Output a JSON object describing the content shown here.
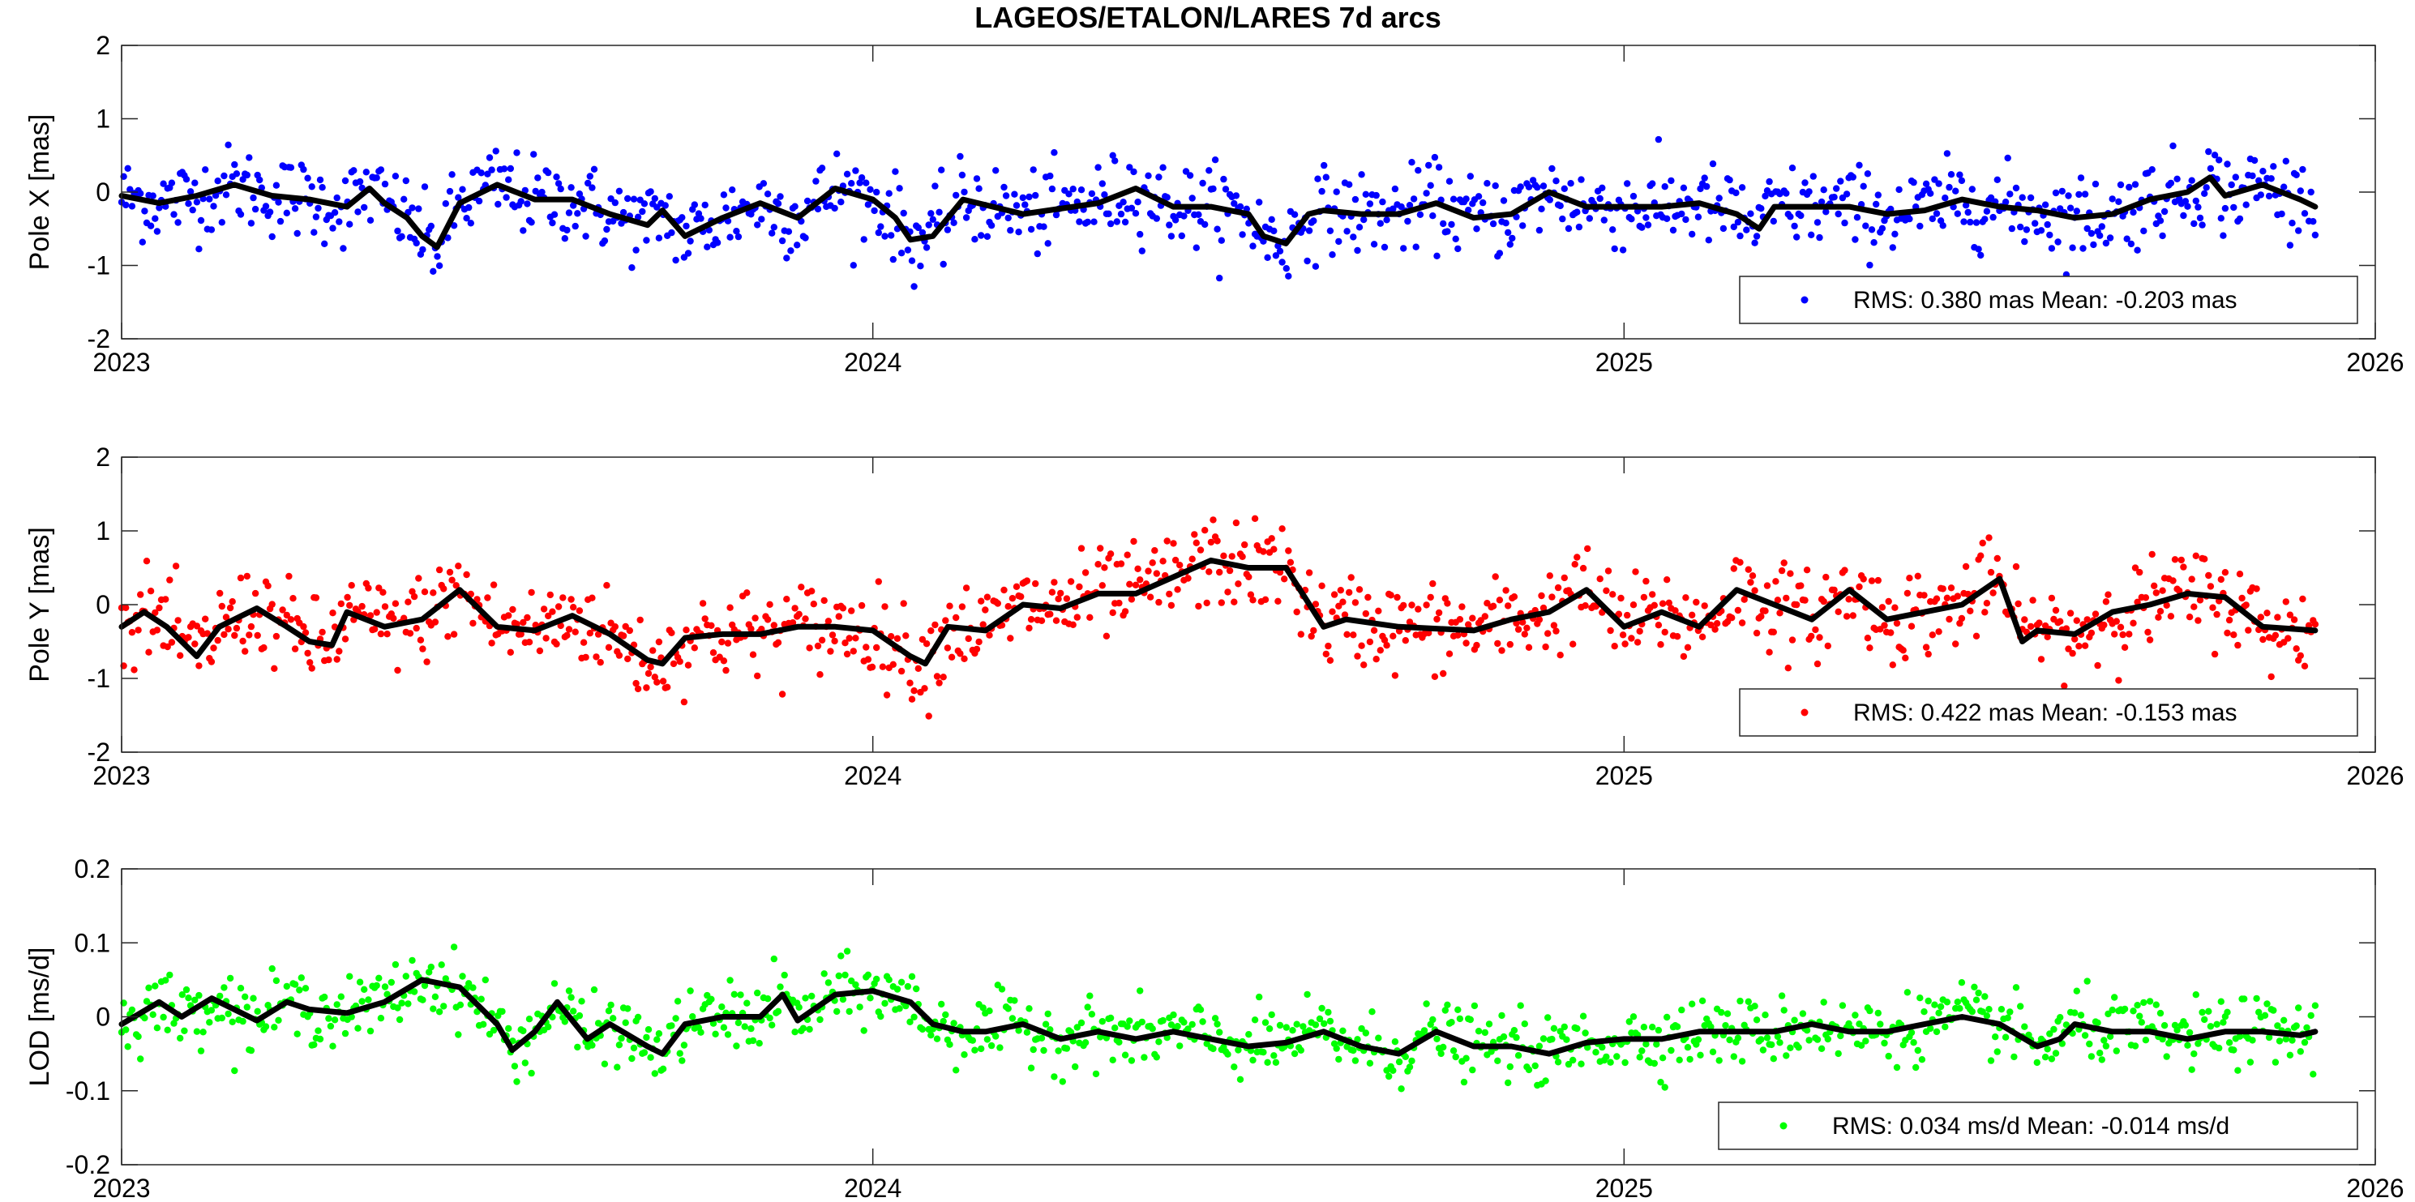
{
  "chart_data": {
    "title": "LAGEOS/ETALON/LARES 7d arcs",
    "x_ticks": [
      2023,
      2024,
      2025,
      2026
    ],
    "xlim": [
      2023,
      2026
    ],
    "panels": [
      {
        "type": "scatter",
        "ylabel": "Pole X [mas]",
        "ylim": [
          -2,
          2
        ],
        "y_ticks": [
          -2,
          -1,
          0,
          1,
          2
        ],
        "point_color": "#0000ff",
        "legend": "RMS: 0.380 mas  Mean: -0.203 mas",
        "n_points": 1050,
        "x_start": 2023.0,
        "x_end": 2025.92,
        "point_spread": 0.28,
        "smoothed_series": {
          "name": "smoothed",
          "color": "#000000",
          "x": [
            2023.0,
            2023.05,
            2023.1,
            2023.15,
            2023.2,
            2023.25,
            2023.3,
            2023.33,
            2023.35,
            2023.38,
            2023.4,
            2023.42,
            2023.45,
            2023.5,
            2023.55,
            2023.6,
            2023.65,
            2023.7,
            2023.72,
            2023.75,
            2023.8,
            2023.85,
            2023.9,
            2023.95,
            2024.0,
            2024.03,
            2024.05,
            2024.08,
            2024.12,
            2024.2,
            2024.3,
            2024.35,
            2024.4,
            2024.45,
            2024.5,
            2024.52,
            2024.55,
            2024.58,
            2024.6,
            2024.65,
            2024.7,
            2024.75,
            2024.8,
            2024.85,
            2024.9,
            2024.95,
            2025.0,
            2025.05,
            2025.1,
            2025.15,
            2025.18,
            2025.2,
            2025.25,
            2025.3,
            2025.35,
            2025.4,
            2025.45,
            2025.5,
            2025.55,
            2025.6,
            2025.65,
            2025.7,
            2025.75,
            2025.78,
            2025.8,
            2025.85,
            2025.9,
            2025.92
          ],
          "y": [
            -0.05,
            -0.15,
            -0.05,
            0.1,
            -0.05,
            -0.1,
            -0.2,
            0.05,
            -0.15,
            -0.35,
            -0.6,
            -0.75,
            -0.15,
            0.1,
            -0.1,
            -0.1,
            -0.3,
            -0.45,
            -0.25,
            -0.6,
            -0.35,
            -0.15,
            -0.35,
            0.05,
            -0.1,
            -0.35,
            -0.65,
            -0.6,
            -0.1,
            -0.3,
            -0.15,
            0.05,
            -0.2,
            -0.2,
            -0.3,
            -0.6,
            -0.7,
            -0.3,
            -0.25,
            -0.3,
            -0.3,
            -0.15,
            -0.35,
            -0.3,
            0.0,
            -0.2,
            -0.2,
            -0.2,
            -0.15,
            -0.3,
            -0.5,
            -0.2,
            -0.2,
            -0.2,
            -0.3,
            -0.25,
            -0.1,
            -0.2,
            -0.25,
            -0.35,
            -0.3,
            -0.1,
            0.0,
            0.2,
            -0.05,
            0.1,
            -0.1,
            -0.2
          ]
        }
      },
      {
        "type": "scatter",
        "ylabel": "Pole Y [mas]",
        "ylim": [
          -2,
          2
        ],
        "y_ticks": [
          -2,
          -1,
          0,
          1,
          2
        ],
        "point_color": "#ff0000",
        "legend": "RMS: 0.422 mas  Mean: -0.153 mas",
        "n_points": 1050,
        "x_start": 2023.0,
        "x_end": 2025.92,
        "point_spread": 0.3,
        "smoothed_series": {
          "name": "smoothed",
          "color": "#000000",
          "x": [
            2023.0,
            2023.03,
            2023.06,
            2023.1,
            2023.13,
            2023.18,
            2023.22,
            2023.25,
            2023.28,
            2023.3,
            2023.35,
            2023.4,
            2023.45,
            2023.5,
            2023.55,
            2023.6,
            2023.65,
            2023.7,
            2023.72,
            2023.75,
            2023.8,
            2023.85,
            2023.9,
            2023.95,
            2024.0,
            2024.05,
            2024.07,
            2024.1,
            2024.15,
            2024.2,
            2024.25,
            2024.3,
            2024.35,
            2024.45,
            2024.5,
            2024.55,
            2024.6,
            2024.63,
            2024.7,
            2024.8,
            2024.85,
            2024.9,
            2024.95,
            2025.0,
            2025.05,
            2025.1,
            2025.15,
            2025.2,
            2025.25,
            2025.3,
            2025.35,
            2025.4,
            2025.45,
            2025.5,
            2025.53,
            2025.55,
            2025.6,
            2025.65,
            2025.7,
            2025.75,
            2025.8,
            2025.85,
            2025.92
          ],
          "y": [
            -0.3,
            -0.1,
            -0.3,
            -0.7,
            -0.3,
            -0.05,
            -0.3,
            -0.5,
            -0.55,
            -0.1,
            -0.3,
            -0.2,
            0.2,
            -0.3,
            -0.35,
            -0.15,
            -0.4,
            -0.75,
            -0.8,
            -0.45,
            -0.4,
            -0.4,
            -0.3,
            -0.3,
            -0.35,
            -0.7,
            -0.8,
            -0.3,
            -0.35,
            0.0,
            -0.05,
            0.15,
            0.15,
            0.6,
            0.5,
            0.5,
            -0.3,
            -0.2,
            -0.3,
            -0.35,
            -0.2,
            -0.1,
            0.2,
            -0.3,
            -0.1,
            -0.3,
            0.2,
            0.0,
            -0.2,
            0.2,
            -0.2,
            -0.1,
            0.0,
            0.35,
            -0.5,
            -0.35,
            -0.4,
            -0.1,
            0.0,
            0.15,
            0.1,
            -0.3,
            -0.35
          ]
        }
      },
      {
        "type": "scatter",
        "ylabel": "LOD [ms/d]",
        "ylim": [
          -0.2,
          0.2
        ],
        "y_ticks": [
          -0.2,
          -0.1,
          0,
          0.1,
          0.2
        ],
        "point_color": "#00ff00",
        "legend": "RMS: 0.034 ms/d  Mean: -0.014 ms/d",
        "n_points": 1050,
        "x_start": 2023.0,
        "x_end": 2025.92,
        "point_spread": 0.022,
        "smoothed_series": {
          "name": "smoothed",
          "color": "#000000",
          "x": [
            2023.0,
            2023.05,
            2023.08,
            2023.12,
            2023.18,
            2023.22,
            2023.25,
            2023.3,
            2023.35,
            2023.4,
            2023.45,
            2023.5,
            2023.52,
            2023.55,
            2023.58,
            2023.62,
            2023.65,
            2023.7,
            2023.72,
            2023.75,
            2023.8,
            2023.85,
            2023.88,
            2023.9,
            2023.95,
            2024.0,
            2024.05,
            2024.08,
            2024.12,
            2024.15,
            2024.2,
            2024.25,
            2024.3,
            2024.35,
            2024.4,
            2024.45,
            2024.5,
            2024.55,
            2024.6,
            2024.65,
            2024.7,
            2024.75,
            2024.8,
            2024.82,
            2024.85,
            2024.9,
            2024.95,
            2025.0,
            2025.05,
            2025.1,
            2025.15,
            2025.2,
            2025.25,
            2025.3,
            2025.35,
            2025.4,
            2025.45,
            2025.5,
            2025.55,
            2025.58,
            2025.6,
            2025.65,
            2025.7,
            2025.75,
            2025.8,
            2025.85,
            2025.9,
            2025.92
          ],
          "y": [
            -0.01,
            0.02,
            0.0,
            0.025,
            -0.005,
            0.02,
            0.01,
            0.005,
            0.02,
            0.05,
            0.04,
            -0.01,
            -0.045,
            -0.02,
            0.02,
            -0.03,
            -0.01,
            -0.04,
            -0.05,
            -0.01,
            0.0,
            0.0,
            0.03,
            -0.005,
            0.03,
            0.035,
            0.02,
            -0.01,
            -0.02,
            -0.02,
            -0.01,
            -0.03,
            -0.02,
            -0.03,
            -0.02,
            -0.03,
            -0.04,
            -0.035,
            -0.02,
            -0.04,
            -0.05,
            -0.02,
            -0.04,
            -0.04,
            -0.04,
            -0.05,
            -0.035,
            -0.03,
            -0.03,
            -0.02,
            -0.02,
            -0.02,
            -0.01,
            -0.02,
            -0.02,
            -0.01,
            0.0,
            -0.01,
            -0.04,
            -0.03,
            -0.01,
            -0.02,
            -0.02,
            -0.03,
            -0.02,
            -0.02,
            -0.025,
            -0.02
          ]
        }
      }
    ]
  }
}
